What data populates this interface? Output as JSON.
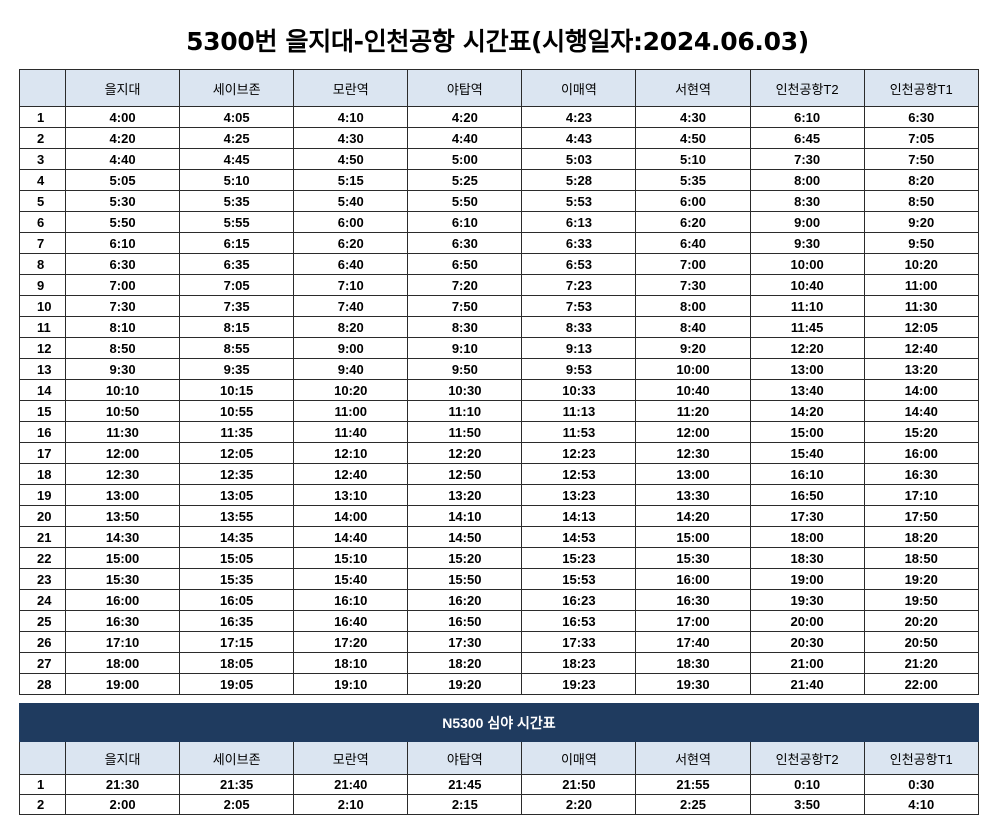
{
  "title": "5300번 을지대-인천공항 시간표(시행일자:2024.06.03)",
  "columns": [
    "을지대",
    "세이브존",
    "모란역",
    "야탑역",
    "이매역",
    "서현역",
    "인천공항T2",
    "인천공항T1"
  ],
  "rows": [
    [
      "1",
      "4:00",
      "4:05",
      "4:10",
      "4:20",
      "4:23",
      "4:30",
      "6:10",
      "6:30"
    ],
    [
      "2",
      "4:20",
      "4:25",
      "4:30",
      "4:40",
      "4:43",
      "4:50",
      "6:45",
      "7:05"
    ],
    [
      "3",
      "4:40",
      "4:45",
      "4:50",
      "5:00",
      "5:03",
      "5:10",
      "7:30",
      "7:50"
    ],
    [
      "4",
      "5:05",
      "5:10",
      "5:15",
      "5:25",
      "5:28",
      "5:35",
      "8:00",
      "8:20"
    ],
    [
      "5",
      "5:30",
      "5:35",
      "5:40",
      "5:50",
      "5:53",
      "6:00",
      "8:30",
      "8:50"
    ],
    [
      "6",
      "5:50",
      "5:55",
      "6:00",
      "6:10",
      "6:13",
      "6:20",
      "9:00",
      "9:20"
    ],
    [
      "7",
      "6:10",
      "6:15",
      "6:20",
      "6:30",
      "6:33",
      "6:40",
      "9:30",
      "9:50"
    ],
    [
      "8",
      "6:30",
      "6:35",
      "6:40",
      "6:50",
      "6:53",
      "7:00",
      "10:00",
      "10:20"
    ],
    [
      "9",
      "7:00",
      "7:05",
      "7:10",
      "7:20",
      "7:23",
      "7:30",
      "10:40",
      "11:00"
    ],
    [
      "10",
      "7:30",
      "7:35",
      "7:40",
      "7:50",
      "7:53",
      "8:00",
      "11:10",
      "11:30"
    ],
    [
      "11",
      "8:10",
      "8:15",
      "8:20",
      "8:30",
      "8:33",
      "8:40",
      "11:45",
      "12:05"
    ],
    [
      "12",
      "8:50",
      "8:55",
      "9:00",
      "9:10",
      "9:13",
      "9:20",
      "12:20",
      "12:40"
    ],
    [
      "13",
      "9:30",
      "9:35",
      "9:40",
      "9:50",
      "9:53",
      "10:00",
      "13:00",
      "13:20"
    ],
    [
      "14",
      "10:10",
      "10:15",
      "10:20",
      "10:30",
      "10:33",
      "10:40",
      "13:40",
      "14:00"
    ],
    [
      "15",
      "10:50",
      "10:55",
      "11:00",
      "11:10",
      "11:13",
      "11:20",
      "14:20",
      "14:40"
    ],
    [
      "16",
      "11:30",
      "11:35",
      "11:40",
      "11:50",
      "11:53",
      "12:00",
      "15:00",
      "15:20"
    ],
    [
      "17",
      "12:00",
      "12:05",
      "12:10",
      "12:20",
      "12:23",
      "12:30",
      "15:40",
      "16:00"
    ],
    [
      "18",
      "12:30",
      "12:35",
      "12:40",
      "12:50",
      "12:53",
      "13:00",
      "16:10",
      "16:30"
    ],
    [
      "19",
      "13:00",
      "13:05",
      "13:10",
      "13:20",
      "13:23",
      "13:30",
      "16:50",
      "17:10"
    ],
    [
      "20",
      "13:50",
      "13:55",
      "14:00",
      "14:10",
      "14:13",
      "14:20",
      "17:30",
      "17:50"
    ],
    [
      "21",
      "14:30",
      "14:35",
      "14:40",
      "14:50",
      "14:53",
      "15:00",
      "18:00",
      "18:20"
    ],
    [
      "22",
      "15:00",
      "15:05",
      "15:10",
      "15:20",
      "15:23",
      "15:30",
      "18:30",
      "18:50"
    ],
    [
      "23",
      "15:30",
      "15:35",
      "15:40",
      "15:50",
      "15:53",
      "16:00",
      "19:00",
      "19:20"
    ],
    [
      "24",
      "16:00",
      "16:05",
      "16:10",
      "16:20",
      "16:23",
      "16:30",
      "19:30",
      "19:50"
    ],
    [
      "25",
      "16:30",
      "16:35",
      "16:40",
      "16:50",
      "16:53",
      "17:00",
      "20:00",
      "20:20"
    ],
    [
      "26",
      "17:10",
      "17:15",
      "17:20",
      "17:30",
      "17:33",
      "17:40",
      "20:30",
      "20:50"
    ],
    [
      "27",
      "18:00",
      "18:05",
      "18:10",
      "18:20",
      "18:23",
      "18:30",
      "21:00",
      "21:20"
    ],
    [
      "28",
      "19:00",
      "19:05",
      "19:10",
      "19:20",
      "19:23",
      "19:30",
      "21:40",
      "22:00"
    ]
  ],
  "night": {
    "title": "N5300 심야 시간표",
    "columns": [
      "을지대",
      "세이브존",
      "모란역",
      "야탑역",
      "이매역",
      "서현역",
      "인천공항T2",
      "인천공항T1"
    ],
    "rows": [
      [
        "1",
        "21:30",
        "21:35",
        "21:40",
        "21:45",
        "21:50",
        "21:55",
        "0:10",
        "0:30"
      ],
      [
        "2",
        "2:00",
        "2:05",
        "2:10",
        "2:15",
        "2:20",
        "2:25",
        "3:50",
        "4:10"
      ]
    ]
  },
  "colors": {
    "header_bg": "#dbe5f1",
    "banner_bg": "#1f3b5f",
    "banner_text": "#ffffff",
    "border": "#2b2b2b"
  }
}
